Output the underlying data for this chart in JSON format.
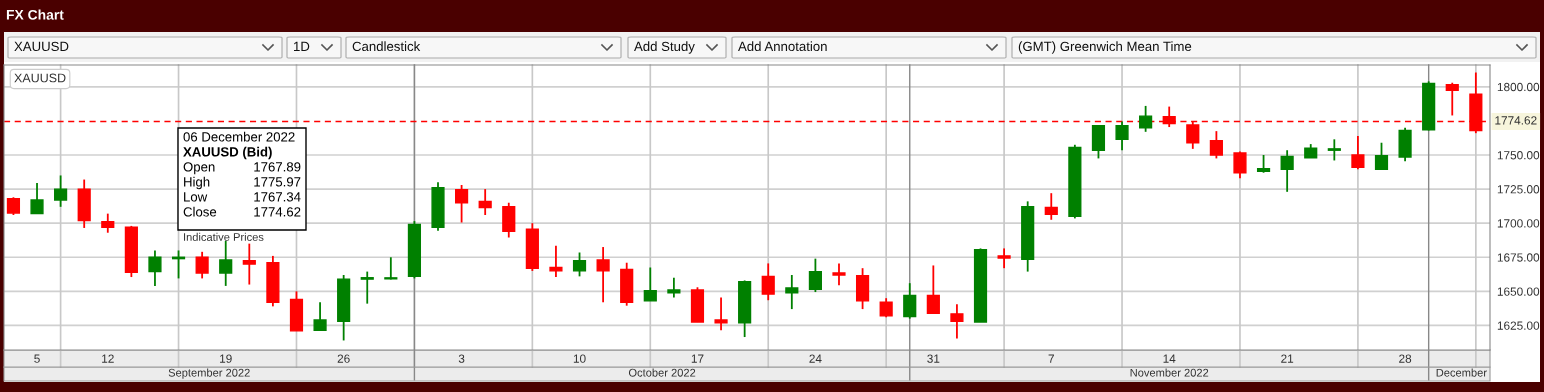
{
  "chart_data": {
    "type": "candlestick",
    "title": "FX Chart",
    "categories": [
      null,
      "5",
      null,
      null,
      "12",
      null,
      null,
      null,
      null,
      "19",
      null,
      null,
      null,
      null,
      "26",
      null,
      null,
      null,
      null,
      "3",
      null,
      null,
      null,
      null,
      "10",
      null,
      null,
      null,
      null,
      "17",
      null,
      null,
      null,
      null,
      "24",
      null,
      null,
      null,
      null,
      "31",
      null,
      null,
      null,
      null,
      "7",
      null,
      null,
      null,
      null,
      "14",
      null,
      null,
      null,
      null,
      "21",
      null,
      null,
      null,
      null,
      "28",
      null,
      null,
      null
    ],
    "ohlc": [
      [
        1718,
        1719,
        1706,
        1707.5
      ],
      [
        1707,
        1729.5,
        1707,
        1717
      ],
      [
        1717,
        1735,
        1712,
        1725
      ],
      [
        1725,
        1732,
        1696.5,
        1702
      ],
      [
        1701,
        1707,
        1693,
        1697
      ],
      [
        1697,
        1698,
        1660.5,
        1664
      ],
      [
        1664.5,
        1680,
        1654,
        1675
      ],
      [
        1674,
        1680,
        1659.5,
        1675
      ],
      [
        1675,
        1679,
        1659.5,
        1663.5
      ],
      [
        1663.5,
        1687,
        1654,
        1673
      ],
      [
        1672.5,
        1685,
        1655,
        1670
      ],
      [
        1671,
        1676,
        1639,
        1642
      ],
      [
        1644,
        1650,
        1621,
        1621
      ],
      [
        1621.5,
        1642,
        1621.5,
        1629
      ],
      [
        1628,
        1662,
        1614,
        1659
      ],
      [
        1659,
        1664.5,
        1641,
        1660
      ],
      [
        1659.2,
        1675,
        1658.7,
        1659.9
      ],
      [
        1661,
        1701.5,
        1659.5,
        1699
      ],
      [
        1697,
        1730,
        1694.5,
        1726
      ],
      [
        1724.5,
        1728,
        1700.5,
        1715
      ],
      [
        1716,
        1725,
        1706,
        1711.5
      ],
      [
        1712,
        1715,
        1689.5,
        1694
      ],
      [
        1695.5,
        1700,
        1665,
        1667
      ],
      [
        1667.5,
        1683.5,
        1660.5,
        1665
      ],
      [
        1665,
        1678.5,
        1661,
        1672.5
      ],
      [
        1673,
        1682.5,
        1642,
        1665
      ],
      [
        1666,
        1671,
        1639.5,
        1642
      ],
      [
        1643,
        1667.5,
        1643,
        1650.5
      ],
      [
        1649,
        1660,
        1645.5,
        1651
      ],
      [
        1651,
        1653,
        1627.5,
        1627.5
      ],
      [
        1629,
        1645.5,
        1621.5,
        1627
      ],
      [
        1627,
        1658,
        1616.5,
        1657
      ],
      [
        1661,
        1670.5,
        1643.5,
        1648
      ],
      [
        1649,
        1662,
        1637,
        1652.5
      ],
      [
        1651.5,
        1674,
        1649.5,
        1664.5
      ],
      [
        1663.5,
        1670.5,
        1654.5,
        1662
      ],
      [
        1661.5,
        1667,
        1637,
        1643
      ],
      [
        1642,
        1645,
        1631,
        1632
      ],
      [
        1631.5,
        1656,
        1630,
        1647
      ],
      [
        1647,
        1669,
        1634,
        1634
      ],
      [
        1633.5,
        1640.5,
        1615.5,
        1628
      ],
      [
        1627.5,
        1681.5,
        1627.5,
        1680.5
      ],
      [
        1676,
        1681.5,
        1667,
        1674.5
      ],
      [
        1673.5,
        1716,
        1664.5,
        1712
      ],
      [
        1711.5,
        1722,
        1702.5,
        1706.5
      ],
      [
        1705,
        1757.5,
        1703.5,
        1755.5
      ],
      [
        1753.5,
        1772,
        1747.5,
        1771.5
      ],
      [
        1761.5,
        1774.5,
        1753.5,
        1771.5
      ],
      [
        1770,
        1786,
        1767,
        1778.5
      ],
      [
        1778,
        1785.5,
        1770.5,
        1773
      ],
      [
        1772,
        1774.5,
        1754.5,
        1759
      ],
      [
        1760.5,
        1767.5,
        1747.5,
        1750
      ],
      [
        1751.5,
        1752.5,
        1733,
        1737
      ],
      [
        1738,
        1750,
        1737,
        1740
      ],
      [
        1739.5,
        1753.5,
        1723,
        1749
      ],
      [
        1748,
        1758,
        1748,
        1755
      ],
      [
        1753.5,
        1761.5,
        1746,
        1754.5
      ],
      [
        1750,
        1764,
        1739.5,
        1741
      ],
      [
        1739.5,
        1759,
        1739.5,
        1749.5
      ],
      [
        1748.5,
        1770,
        1745.5,
        1768
      ],
      [
        1768.5,
        1804,
        1768,
        1802.5
      ],
      [
        1801.5,
        1803,
        1779,
        1797.5
      ],
      [
        1794.5,
        1810.5,
        1766,
        1768
      ]
    ],
    "colors": [
      "#ff0000",
      "#008000",
      "#008000",
      "#ff0000",
      "#ff0000",
      "#ff0000",
      "#008000",
      "#008000",
      "#ff0000",
      "#008000",
      "#ff0000",
      "#ff0000",
      "#ff0000",
      "#008000",
      "#008000",
      "#008000",
      "#008000",
      "#008000",
      "#008000",
      "#ff0000",
      "#ff0000",
      "#ff0000",
      "#ff0000",
      "#ff0000",
      "#008000",
      "#ff0000",
      "#ff0000",
      "#008000",
      "#008000",
      "#ff0000",
      "#ff0000",
      "#008000",
      "#ff0000",
      "#008000",
      "#008000",
      "#ff0000",
      "#ff0000",
      "#ff0000",
      "#008000",
      "#ff0000",
      "#ff0000",
      "#008000",
      "#ff0000",
      "#008000",
      "#ff0000",
      "#008000",
      "#008000",
      "#008000",
      "#008000",
      "#ff0000",
      "#ff0000",
      "#ff0000",
      "#ff0000",
      "#008000",
      "#008000",
      "#008000",
      "#008000",
      "#ff0000",
      "#008000",
      "#008000",
      "#008000",
      "#ff0000",
      "#ff0000"
    ],
    "ylim": [
      1607,
      1816
    ],
    "yticks": [
      {
        "value": 1625,
        "label": "1625.00"
      },
      {
        "value": 1650,
        "label": "1650.00"
      },
      {
        "value": 1675,
        "label": "1675.00"
      },
      {
        "value": 1700,
        "label": "1700.00"
      },
      {
        "value": 1725,
        "label": "1725.00"
      },
      {
        "value": 1750,
        "label": "1750.00"
      },
      {
        "value": 1800,
        "label": "1800.00"
      }
    ],
    "grid": true,
    "ref_lines": [
      {
        "axis": "y",
        "value": 1774.62,
        "label": "1774.62",
        "color": "#ff0000",
        "line_style": "dashed"
      }
    ],
    "annotations": [
      "XAUUSD",
      "1D",
      "Candlestick",
      "Add Study",
      "Add Annotation",
      "(GMT) Greenwich Mean Time",
      "XAUUSD",
      "06 December 2022",
      "XAUUSD (Bid)",
      "Open",
      "1767.89",
      "High",
      "1775.97",
      "Low",
      "1767.34",
      "Close",
      "1774.62",
      "Indicative Prices",
      "September 2022",
      "October 2022",
      "November 2022",
      "December"
    ]
  }
}
